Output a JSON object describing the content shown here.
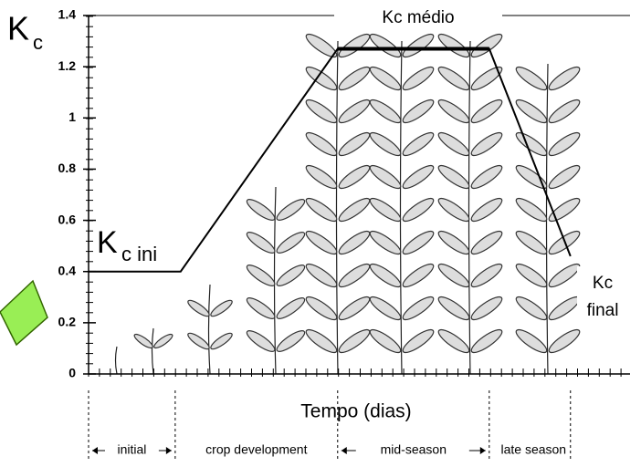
{
  "chart_data": {
    "type": "line",
    "ylabel": [
      "K",
      "c"
    ],
    "xlabel": "Tempo (dias)",
    "x": [
      0,
      17,
      46,
      74,
      89
    ],
    "values": [
      0.4,
      0.4,
      1.27,
      1.27,
      0.46
    ],
    "color": "#000000",
    "xlim": [
      0,
      100
    ],
    "ylim": [
      0,
      1.4
    ],
    "yticks": [
      0,
      0.2,
      0.4,
      0.6,
      0.8,
      1,
      1.2,
      1.4
    ],
    "kc_ini": [
      "K",
      "c ini"
    ],
    "kc_mid": "Kc médio",
    "kc_final": [
      "Kc",
      "final"
    ],
    "stages": [
      "initial",
      "crop development",
      "mid-season",
      "late season"
    ],
    "stage_bounds": [
      0,
      16,
      46,
      74,
      89
    ]
  }
}
